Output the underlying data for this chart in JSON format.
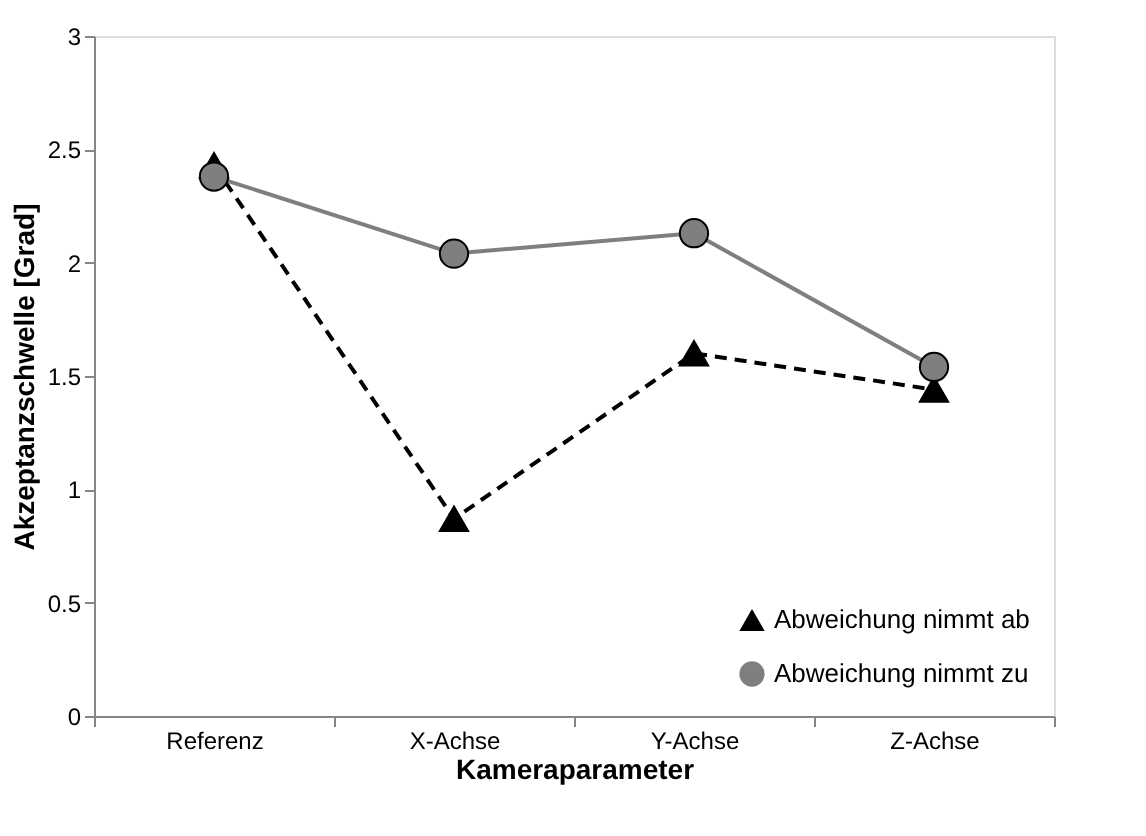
{
  "chart_data": {
    "type": "line",
    "xlabel": "Kameraparameter",
    "ylabel": "Akzeptanzschwelle [Grad]",
    "categories": [
      "Referenz",
      "X-Achse",
      "Y-Achse",
      "Z-Achse"
    ],
    "series": [
      {
        "name": "Abweichung nimmt ab",
        "color": "#000000",
        "values": [
          2.43,
          0.87,
          1.6,
          1.44
        ],
        "marker": "triangle",
        "line_style": "dashed"
      },
      {
        "name": "Abweichung nimmt zu",
        "color": "#7f7f7f",
        "values": [
          2.38,
          2.04,
          2.13,
          1.54
        ],
        "marker": "circle",
        "line_style": "solid"
      }
    ],
    "ylim": [
      0,
      3
    ],
    "yticks": [
      0,
      0.5,
      1,
      1.5,
      2,
      2.5,
      3
    ],
    "grid": false,
    "legend": "bottom right"
  }
}
